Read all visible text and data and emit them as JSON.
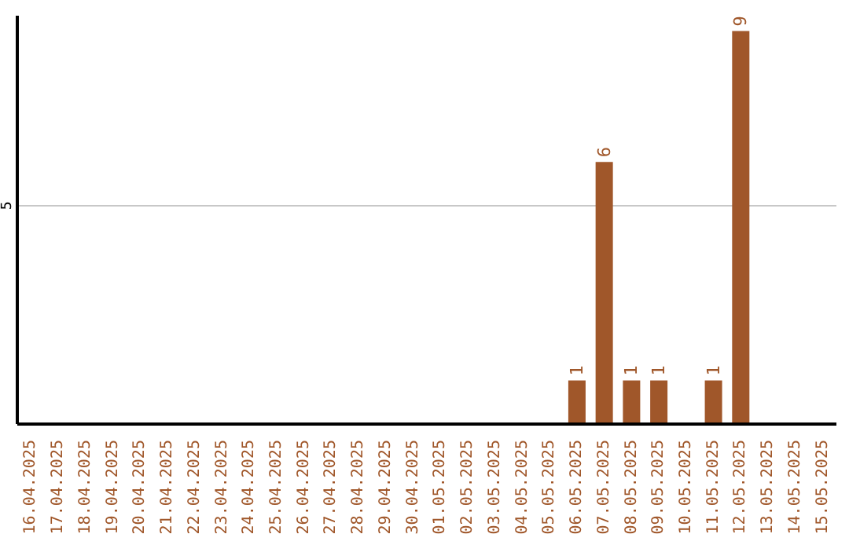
{
  "chart_data": {
    "type": "bar",
    "categories": [
      "16.04.2025",
      "17.04.2025",
      "18.04.2025",
      "19.04.2025",
      "20.04.2025",
      "21.04.2025",
      "22.04.2025",
      "23.04.2025",
      "24.04.2025",
      "25.04.2025",
      "26.04.2025",
      "27.04.2025",
      "28.04.2025",
      "29.04.2025",
      "30.04.2025",
      "01.05.2025",
      "02.05.2025",
      "03.05.2025",
      "04.05.2025",
      "05.05.2025",
      "06.05.2025",
      "07.05.2025",
      "08.05.2025",
      "09.05.2025",
      "10.05.2025",
      "11.05.2025",
      "12.05.2025",
      "13.05.2025",
      "14.05.2025",
      "15.05.2025"
    ],
    "values": [
      null,
      null,
      null,
      null,
      null,
      null,
      null,
      null,
      null,
      null,
      null,
      null,
      null,
      null,
      null,
      null,
      null,
      null,
      null,
      null,
      1,
      6,
      1,
      1,
      null,
      1,
      9,
      null,
      null,
      null
    ],
    "color": "#a0572a",
    "ylim": [
      0,
      9.35
    ],
    "yticks": [
      5
    ],
    "grid": "y",
    "data_labels": true
  }
}
